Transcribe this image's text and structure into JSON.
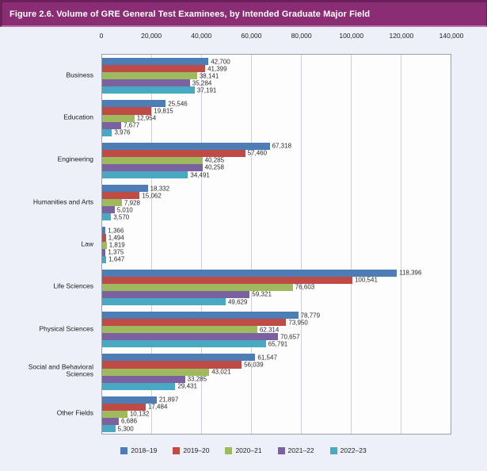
{
  "figure": {
    "title": "Figure 2.6. Volume of GRE General Test Examinees, by Intended Graduate Major Field"
  },
  "colors": {
    "banner_bg": "#8b2d74",
    "banner_border_dark": "#6d1f5a",
    "banner_border_light": "#b573a4",
    "page_bg": "#edf0f9",
    "plot_bg": "#fdfdfe",
    "gridline": "#ccd1d8",
    "plot_border": "#9aa0a8"
  },
  "chart_data": {
    "type": "bar",
    "orientation": "horizontal",
    "title": "Figure 2.6. Volume of GRE General Test Examinees, by Intended Graduate Major Field",
    "xlabel": "",
    "ylabel": "",
    "xlim": [
      0,
      140000
    ],
    "grid": true,
    "legend_position": "bottom",
    "x_axis_ticks": [
      "0",
      "20,000",
      "40,000",
      "60,000",
      "80,000",
      "100,000",
      "120,000",
      "140,000"
    ],
    "x_axis_tick_values": [
      0,
      20000,
      40000,
      60000,
      80000,
      100000,
      120000,
      140000
    ],
    "categories": [
      "Business",
      "Education",
      "Engineering",
      "Humanities and Arts",
      "Law",
      "Life Sciences",
      "Physical Sciences",
      "Social and Behavioral Sciences",
      "Other Fields"
    ],
    "series": [
      {
        "name": "2018–19",
        "color": "#4e7cb5",
        "values": [
          42700,
          25546,
          67318,
          18332,
          1366,
          118396,
          78779,
          61547,
          21897
        ]
      },
      {
        "name": "2019–20",
        "color": "#bf4b47",
        "values": [
          41399,
          19815,
          57460,
          15062,
          1494,
          100541,
          73950,
          56039,
          17484
        ]
      },
      {
        "name": "2020–21",
        "color": "#9eb95e",
        "values": [
          38141,
          12954,
          40285,
          7928,
          1819,
          76603,
          62314,
          43021,
          10132
        ]
      },
      {
        "name": "2021–22",
        "color": "#7a61a0",
        "values": [
          35284,
          7677,
          40258,
          5010,
          1375,
          59321,
          70657,
          33285,
          6686
        ]
      },
      {
        "name": "2022–23",
        "color": "#49a9c2",
        "values": [
          37191,
          3976,
          34491,
          3570,
          1647,
          49629,
          65791,
          29431,
          5300
        ]
      }
    ]
  }
}
